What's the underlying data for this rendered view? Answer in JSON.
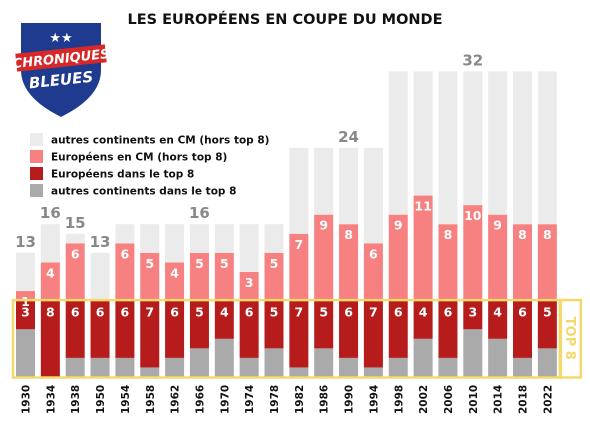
{
  "chart_data": {
    "type": "bar",
    "title": "LES EUROPÉENS EN COUPE DU MONDE",
    "categories": [
      "1930",
      "1934",
      "1938",
      "1950",
      "1954",
      "1958",
      "1962",
      "1966",
      "1970",
      "1974",
      "1978",
      "1982",
      "1986",
      "1990",
      "1994",
      "1998",
      "2002",
      "2006",
      "2010",
      "2014",
      "2018",
      "2022"
    ],
    "series": [
      {
        "name": "autres continents dans le top 8",
        "color": "#aaaaaa",
        "values": [
          5,
          0,
          2,
          2,
          2,
          1,
          2,
          3,
          4,
          2,
          3,
          1,
          3,
          2,
          1,
          2,
          4,
          2,
          5,
          4,
          2,
          3
        ]
      },
      {
        "name": "Européens dans le top 8",
        "color": "#b71c1c",
        "values": [
          3,
          8,
          6,
          6,
          6,
          7,
          6,
          5,
          4,
          6,
          5,
          7,
          5,
          6,
          7,
          6,
          4,
          6,
          3,
          4,
          6,
          5
        ]
      },
      {
        "name": "Européens en CM (hors top 8)",
        "color": "#f78080",
        "values": [
          1,
          4,
          6,
          0,
          6,
          5,
          4,
          5,
          5,
          3,
          5,
          7,
          9,
          8,
          6,
          9,
          11,
          8,
          10,
          9,
          8,
          8
        ]
      },
      {
        "name": "autres continents en CM (hors top 8)",
        "color": "#ebebeb",
        "values": [
          4,
          4,
          1,
          5,
          2,
          3,
          4,
          3,
          3,
          5,
          3,
          9,
          7,
          8,
          10,
          15,
          13,
          16,
          14,
          15,
          16,
          16
        ]
      }
    ],
    "totals": [
      13,
      16,
      15,
      13,
      16,
      16,
      16,
      16,
      16,
      16,
      16,
      24,
      24,
      24,
      24,
      32,
      32,
      32,
      32,
      32,
      32,
      32
    ],
    "total_labels": {
      "1930": "13",
      "1934": "16",
      "1938": "15",
      "1950": "13",
      "1966": "16",
      "1990": "24",
      "2010": "32"
    },
    "legend": [
      {
        "label": "autres continents en CM (hors top 8)",
        "color": "#ebebeb"
      },
      {
        "label": "Européens en CM (hors top 8)",
        "color": "#f78080"
      },
      {
        "label": "Européens dans le top 8",
        "color": "#b71c1c"
      },
      {
        "label": "autres continents dans le top 8",
        "color": "#aaaaaa"
      }
    ],
    "legend_position": "upper-left",
    "top8_label": "TOP 8",
    "top8_color": "#f4d86a",
    "ylim": [
      0,
      32
    ],
    "grid": false
  },
  "logo": {
    "line1": "CHRONIQUES",
    "line2": "BLEUES",
    "stars": "★★",
    "colors": {
      "shield": "#1f3b8f",
      "band": "#d62828",
      "stars": "#ffffff"
    }
  }
}
